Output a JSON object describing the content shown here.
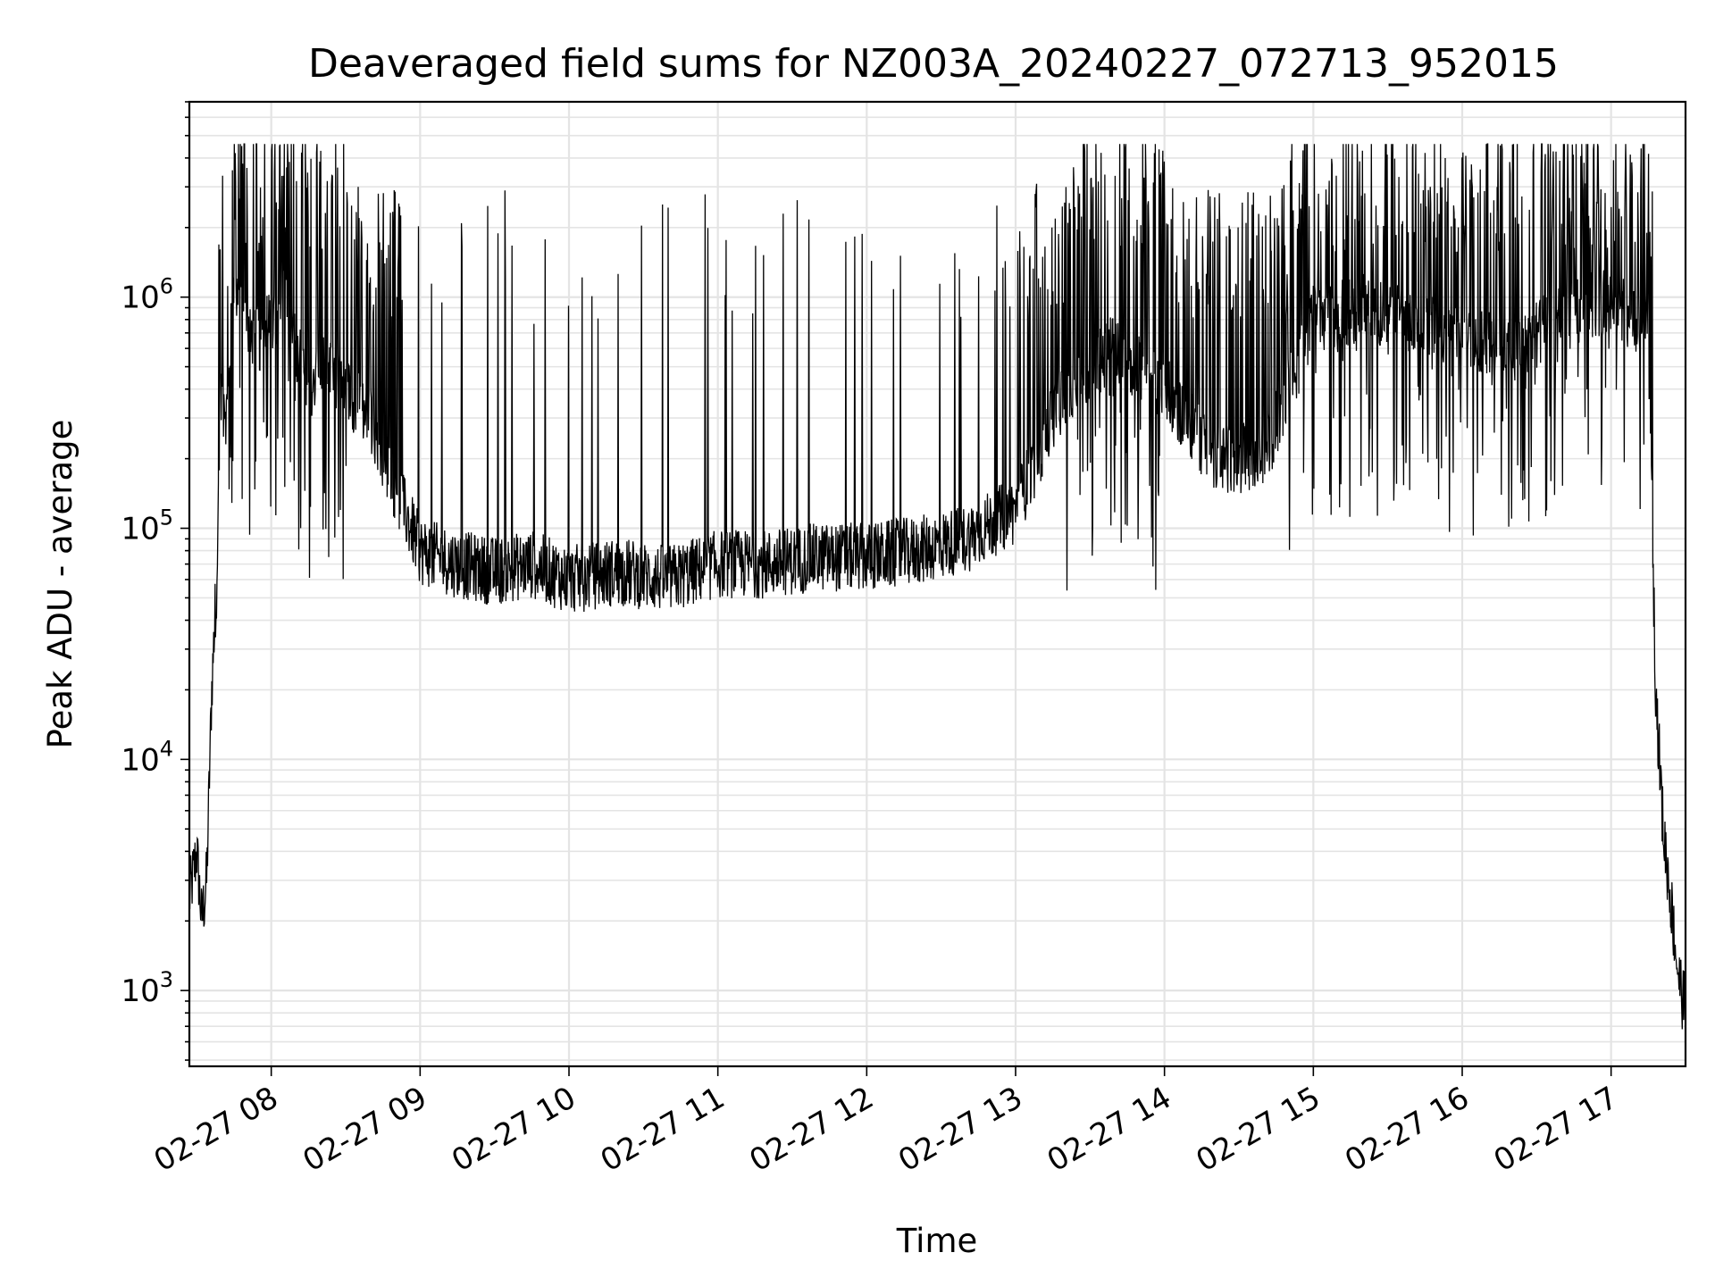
{
  "chart_data": {
    "type": "line",
    "title": "Deaveraged field sums for NZ003A_20240227_072713_952015",
    "xlabel": "Time",
    "ylabel": "Peak ADU - average",
    "yscale": "log",
    "ylim": [
      470,
      7000000
    ],
    "xlim": [
      "2024-02-27 07:27",
      "2024-02-27 17:30"
    ],
    "grid": true,
    "line_color": "#000000",
    "x_ticks": [
      "02-27 08",
      "02-27 09",
      "02-27 10",
      "02-27 11",
      "02-27 12",
      "02-27 13",
      "02-27 14",
      "02-27 15",
      "02-27 16",
      "02-27 17"
    ],
    "y_ticks": [
      {
        "value": 1000,
        "base": "10",
        "exp": "3"
      },
      {
        "value": 10000,
        "base": "10",
        "exp": "4"
      },
      {
        "value": 100000,
        "base": "10",
        "exp": "5"
      },
      {
        "value": 1000000,
        "base": "10",
        "exp": "6"
      }
    ],
    "series": [
      {
        "x": [
          "2024-02-27 07:27",
          "2024-02-27 07:30",
          "2024-02-27 07:32",
          "2024-02-27 07:34",
          "2024-02-27 07:36",
          "2024-02-27 07:38",
          "2024-02-27 07:40",
          "2024-02-27 07:42",
          "2024-02-27 07:45",
          "2024-02-27 07:48",
          "2024-02-27 07:52",
          "2024-02-27 07:56",
          "2024-02-27 08:00",
          "2024-02-27 08:05",
          "2024-02-27 08:10",
          "2024-02-27 08:15",
          "2024-02-27 08:20",
          "2024-02-27 08:30",
          "2024-02-27 08:40",
          "2024-02-27 08:50",
          "2024-02-27 09:00",
          "2024-02-27 09:15",
          "2024-02-27 09:30",
          "2024-02-27 09:45",
          "2024-02-27 10:00",
          "2024-02-27 10:20",
          "2024-02-27 10:40",
          "2024-02-27 11:00",
          "2024-02-27 11:20",
          "2024-02-27 11:40",
          "2024-02-27 12:00",
          "2024-02-27 12:20",
          "2024-02-27 12:40",
          "2024-02-27 13:00",
          "2024-02-27 13:20",
          "2024-02-27 13:40",
          "2024-02-27 14:00",
          "2024-02-27 14:20",
          "2024-02-27 14:40",
          "2024-02-27 15:00",
          "2024-02-27 15:20",
          "2024-02-27 15:40",
          "2024-02-27 16:00",
          "2024-02-27 16:20",
          "2024-02-27 16:40",
          "2024-02-27 17:00",
          "2024-02-27 17:15",
          "2024-02-27 17:18",
          "2024-02-27 17:21",
          "2024-02-27 17:24",
          "2024-02-27 17:27",
          "2024-02-27 17:30"
        ],
        "y": [
          2500,
          4000,
          2000,
          3000,
          20000,
          60000,
          500000,
          300000,
          1200000,
          900000,
          700000,
          900000,
          700000,
          1000000,
          600000,
          400000,
          500000,
          400000,
          300000,
          150000,
          80000,
          70000,
          65000,
          70000,
          60000,
          65000,
          60000,
          70000,
          70000,
          75000,
          75000,
          80000,
          90000,
          120000,
          400000,
          600000,
          400000,
          200000,
          200000,
          800000,
          900000,
          800000,
          700000,
          600000,
          800000,
          1000000,
          700000,
          20000,
          5000,
          2500,
          1200,
          800
        ]
      }
    ]
  }
}
